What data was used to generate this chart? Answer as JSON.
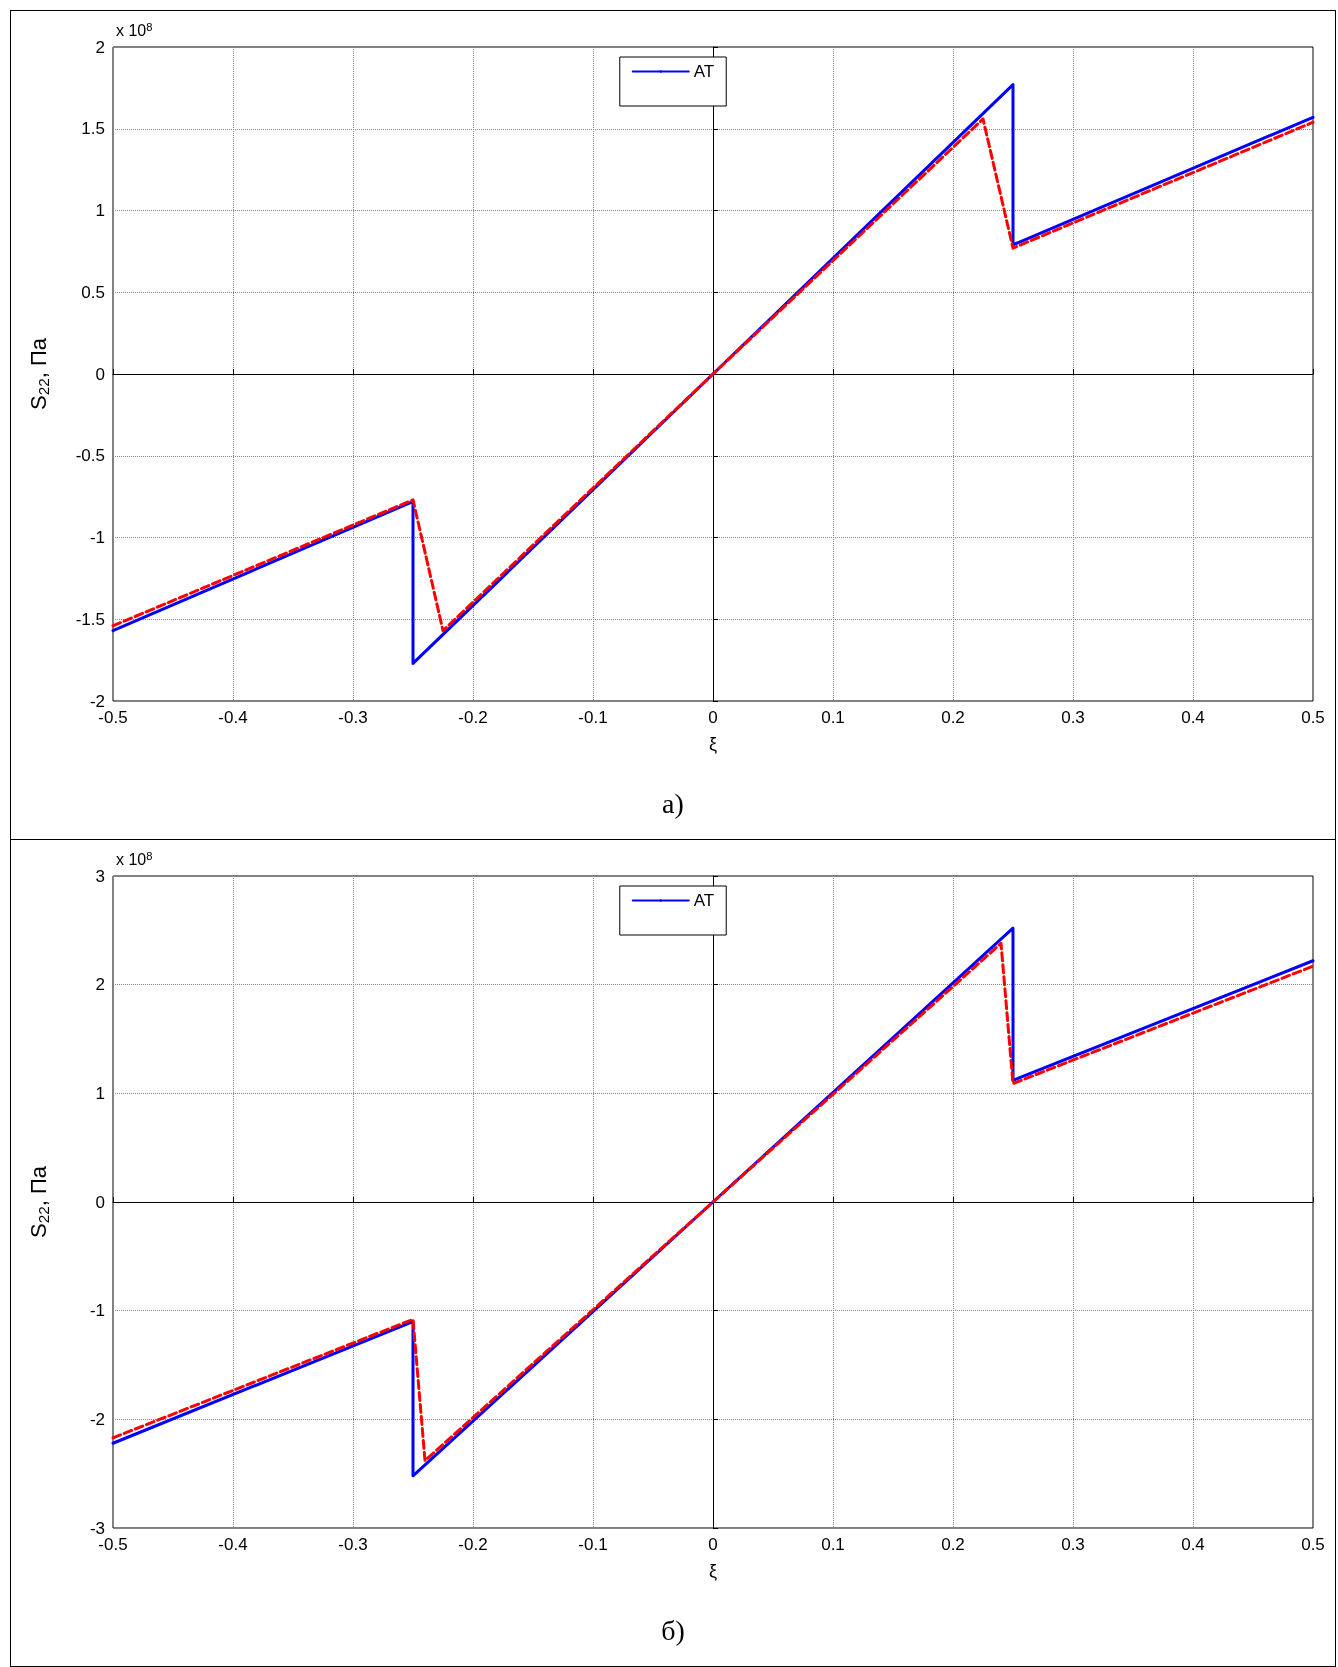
{
  "chart_data": [
    {
      "type": "line",
      "xlabel": "ξ",
      "ylabel": "S$_{22}$, Па",
      "annotations": [
        "x 10$^{8}$",
        "а)"
      ],
      "xlim": [
        -0.5,
        0.5
      ],
      "xticks": [
        -0.5,
        -0.4,
        -0.3,
        -0.2,
        -0.1,
        0,
        0.1,
        0.2,
        0.3,
        0.4,
        0.5
      ],
      "ylim": [
        -2,
        2
      ],
      "yticks": [
        -2,
        -1.5,
        -1,
        -0.5,
        0,
        0.5,
        1,
        1.5,
        2
      ],
      "grid": true,
      "legend": "top",
      "marker": "none",
      "series": [
        {
          "name": "AT",
          "color": "#0000ff",
          "line_style": "solid",
          "x": [
            -0.5,
            -0.25,
            -0.25,
            0,
            0.25,
            0.25,
            0.5
          ],
          "values": [
            -1.57,
            -0.78,
            -1.77,
            0,
            1.77,
            0.79,
            1.57
          ]
        },
        {
          "color": "#ff0000",
          "line_style": "dashed",
          "x": [
            -0.5,
            -0.25,
            -0.225,
            0,
            0.225,
            0.25,
            0.5
          ],
          "values": [
            -1.54,
            -0.77,
            -1.57,
            0,
            1.56,
            0.77,
            1.54
          ]
        }
      ]
    },
    {
      "type": "line",
      "xlabel": "ξ",
      "ylabel": "S$_{22}$, Па",
      "annotations": [
        "x 10$^{8}$",
        "б)"
      ],
      "xlim": [
        -0.5,
        0.5
      ],
      "xticks": [
        -0.5,
        -0.4,
        -0.3,
        -0.2,
        -0.1,
        0,
        0.1,
        0.2,
        0.3,
        0.4,
        0.5
      ],
      "ylim": [
        -3,
        3
      ],
      "yticks": [
        -3,
        -2,
        -1,
        0,
        1,
        2,
        3
      ],
      "grid": true,
      "legend": "top",
      "marker": "none",
      "series": [
        {
          "name": "AT",
          "color": "#0000ff",
          "line_style": "solid",
          "x": [
            -0.5,
            -0.25,
            -0.25,
            0,
            0.25,
            0.25,
            0.5
          ],
          "values": [
            -2.22,
            -1.1,
            -2.52,
            0,
            2.52,
            1.12,
            2.22
          ]
        },
        {
          "color": "#ff0000",
          "line_style": "dashed",
          "x": [
            -0.5,
            -0.25,
            -0.24,
            0,
            0.24,
            0.25,
            0.5
          ],
          "values": [
            -2.17,
            -1.08,
            -2.38,
            0,
            2.38,
            1.09,
            2.17
          ]
        }
      ]
    }
  ]
}
